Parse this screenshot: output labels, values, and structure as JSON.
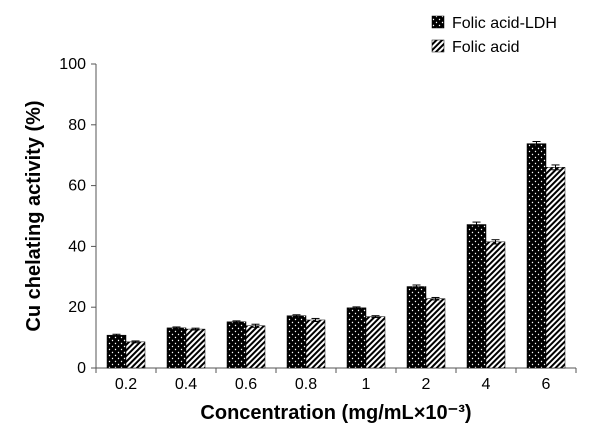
{
  "chart_data": {
    "type": "bar",
    "categories": [
      "0.2",
      "0.4",
      "0.6",
      "0.8",
      "1",
      "2",
      "4",
      "6"
    ],
    "series": [
      {
        "name": "Folic acid-LDH",
        "values": [
          10.8,
          13.2,
          15.2,
          17.2,
          19.8,
          26.8,
          47.2,
          73.8
        ],
        "errors": [
          0.3,
          0.3,
          0.3,
          0.3,
          0.3,
          0.5,
          0.8,
          0.7
        ],
        "pattern": "dots-on-black"
      },
      {
        "name": "Folic acid",
        "values": [
          8.6,
          12.8,
          13.9,
          15.8,
          16.9,
          22.8,
          41.5,
          66.0
        ],
        "errors": [
          0.3,
          0.3,
          0.5,
          0.5,
          0.3,
          0.4,
          0.7,
          0.8
        ],
        "pattern": "diagonal-hatch"
      }
    ],
    "xlabel": "Concentration (mg/mL×10⁻³)",
    "ylabel": "Cu chelating activity (%)",
    "ylim": [
      0,
      100
    ],
    "yticks": [
      "0",
      "20",
      "40",
      "60",
      "80",
      "100"
    ],
    "grid": false,
    "legend_position": "top-right",
    "colors": {
      "bar_dark": "#000000",
      "hatch_bg": "#ffffff",
      "axis": "#555555"
    }
  }
}
